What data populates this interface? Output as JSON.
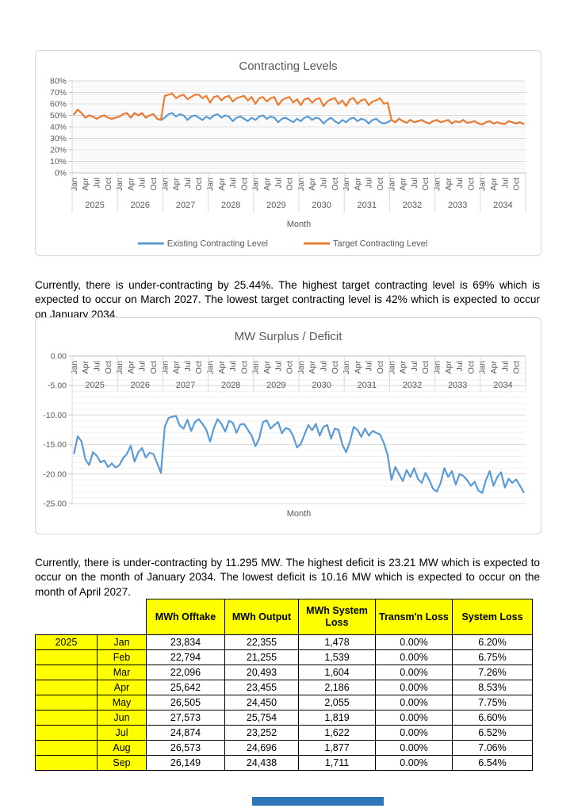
{
  "colors": {
    "series_blue": "#5B9BD5",
    "series_orange": "#ED7D31",
    "axis_text": "#595959",
    "grid_major": "#D9D9D9",
    "grid_minor": "#F0F0F0",
    "axis_line": "#BFBFBF",
    "table_header_bg": "#FFFF00",
    "bottom_bar": "#2E75B6"
  },
  "paragraphs": {
    "p1": "Currently, there is under-contracting by 25.44%. The highest target contracting level is 69% which is expected to occur on March 2027. The lowest target contracting level is 42% which is expected to occur on January 2034.",
    "p2": "Currently, there is under-contracting by 11.295 MW. The highest deficit is 23.21 MW which is expected to occur on the month of January 2034. The lowest deficit is 10.16 MW which is expected to occur on the month of April 2027."
  },
  "chart_data": [
    {
      "type": "line",
      "title": "Contracting Levels",
      "xlabel": "Month",
      "ylabel": "",
      "ylim": [
        0,
        80
      ],
      "grid": "major+minor horizontal",
      "legend_position": "bottom",
      "years": [
        "2025",
        "2026",
        "2027",
        "2028",
        "2029",
        "2030",
        "2031",
        "2032",
        "2033",
        "2034"
      ],
      "month_ticks": [
        "Jan",
        "Apr",
        "Jul",
        "Oct"
      ],
      "y_tick_values": [
        0,
        10,
        20,
        30,
        40,
        50,
        60,
        70,
        80
      ],
      "y_tick_labels": [
        "0%",
        "10%",
        "20%",
        "30%",
        "40%",
        "50%",
        "60%",
        "70%",
        "80%"
      ],
      "series": [
        {
          "name": "Existing Contracting Level",
          "color": "#5B9BD5",
          "values": [
            51,
            55,
            52,
            48,
            50,
            49,
            47,
            49,
            50,
            48,
            47,
            48,
            49,
            51,
            52,
            48,
            52,
            50,
            52,
            48,
            50,
            51,
            47,
            46,
            48,
            51,
            52,
            49,
            51,
            50,
            46,
            49,
            50,
            48,
            46,
            49,
            47,
            50,
            51,
            48,
            50,
            49,
            45,
            48,
            49,
            47,
            45,
            48,
            46,
            49,
            50,
            47,
            49,
            48,
            44,
            47,
            48,
            46,
            44,
            47,
            45,
            48,
            49,
            46,
            48,
            47,
            43,
            46,
            48,
            45,
            43,
            46,
            44,
            47,
            48,
            45,
            47,
            46,
            43,
            46,
            47,
            44,
            43,
            44,
            46,
            44,
            47,
            45,
            43.5,
            46,
            44,
            45,
            46,
            44,
            43,
            45,
            46,
            44,
            45,
            46,
            43,
            45,
            44,
            46,
            43.5,
            44,
            45,
            43,
            42,
            44,
            45,
            43,
            44,
            43,
            42.5,
            45,
            44,
            43,
            44,
            42.5
          ]
        },
        {
          "name": "Target Contracting Level",
          "color": "#ED7D31",
          "values": [
            51,
            55,
            52,
            48,
            50,
            49,
            47,
            49,
            50,
            48,
            47,
            48,
            49,
            51,
            52,
            48,
            52,
            50,
            52,
            48,
            50,
            51,
            47,
            46,
            67,
            68,
            69,
            65,
            67,
            68,
            64,
            66,
            68,
            68,
            65,
            67,
            61,
            66,
            67,
            63,
            66,
            67,
            62,
            65,
            66,
            67,
            63,
            66,
            60,
            65,
            66,
            62,
            65,
            66,
            59,
            63,
            65,
            66,
            61,
            64,
            59,
            64,
            65,
            61,
            64,
            65,
            58,
            62,
            64,
            65,
            60,
            63,
            58,
            64,
            65,
            60,
            63,
            64,
            59,
            62,
            63,
            65,
            60,
            61,
            46,
            44,
            47,
            45,
            43.5,
            46,
            44,
            45,
            46,
            44,
            43,
            45,
            46,
            44,
            45,
            46,
            43,
            45,
            44,
            46,
            43.5,
            44,
            45,
            43,
            42,
            44,
            45,
            43,
            44,
            43,
            42.5,
            45,
            44,
            43,
            44,
            42.5
          ]
        }
      ]
    },
    {
      "type": "line",
      "title": "MW Surplus / Deficit",
      "xlabel": "Month",
      "ylabel": "",
      "ylim": [
        -25,
        0
      ],
      "grid": "major+minor horizontal",
      "legend_position": "none",
      "years": [
        "2025",
        "2026",
        "2027",
        "2028",
        "2029",
        "2030",
        "2031",
        "2032",
        "2033",
        "2034"
      ],
      "month_ticks": [
        "Jan",
        "Apr",
        "Jul",
        "Oct"
      ],
      "y_tick_values": [
        0,
        -5,
        -10,
        -15,
        -20,
        -25
      ],
      "y_tick_labels": [
        "0.00",
        "-5.00",
        "-10.00",
        "-15.00",
        "-20.00",
        "-25.00"
      ],
      "series": [
        {
          "name": "MW Surplus / Deficit",
          "color": "#5B9BD5",
          "values": [
            -16.5,
            -13.6,
            -14.5,
            -17.5,
            -18.5,
            -16.3,
            -16.9,
            -18,
            -17.7,
            -18.8,
            -18.2,
            -18.9,
            -18.5,
            -17.3,
            -16.6,
            -15.2,
            -17.9,
            -16.3,
            -15.6,
            -17.2,
            -16.4,
            -16.6,
            -18.2,
            -19.8,
            -12,
            -10.5,
            -10.3,
            -10.16,
            -11.8,
            -12.3,
            -10.8,
            -12.7,
            -11.2,
            -10.7,
            -11.5,
            -12.5,
            -14.5,
            -12.2,
            -10.7,
            -11.5,
            -12.8,
            -11,
            -11.3,
            -13,
            -11.6,
            -11.5,
            -12.5,
            -13.5,
            -15.3,
            -14,
            -11.2,
            -10.9,
            -12.3,
            -11.7,
            -11.2,
            -13.1,
            -12.2,
            -12.4,
            -13.6,
            -15.5,
            -14.9,
            -13.3,
            -11.7,
            -12.6,
            -11.5,
            -13.5,
            -12,
            -11.7,
            -14,
            -12.3,
            -12.5,
            -15,
            -16.3,
            -14.5,
            -12,
            -12.5,
            -13.7,
            -12.3,
            -13.5,
            -12.7,
            -13,
            -13.3,
            -14.8,
            -16.8,
            -21,
            -18.8,
            -20,
            -21.2,
            -19.3,
            -20.5,
            -19,
            -20.8,
            -21.5,
            -19.8,
            -21,
            -22.5,
            -23,
            -21.5,
            -19,
            -20.5,
            -19.5,
            -21.8,
            -20,
            -20.3,
            -21,
            -22,
            -21.3,
            -22.8,
            -23.21,
            -21,
            -19.5,
            -22,
            -20.5,
            -19.7,
            -22.3,
            -20.8,
            -21.5,
            -20.9,
            -22,
            -23.1
          ]
        }
      ]
    }
  ],
  "table": {
    "headers": [
      "MWh Offtake",
      "MWh Output",
      "MWh System Loss",
      "Transm'n Loss",
      "System Loss"
    ],
    "rows": [
      {
        "year": "2025",
        "month": "Jan",
        "cells": [
          "23,834",
          "22,355",
          "1,478",
          "0.00%",
          "6.20%"
        ]
      },
      {
        "year": "",
        "month": "Feb",
        "cells": [
          "22,794",
          "21,255",
          "1,539",
          "0.00%",
          "6.75%"
        ]
      },
      {
        "year": "",
        "month": "Mar",
        "cells": [
          "22,096",
          "20,493",
          "1,604",
          "0.00%",
          "7.26%"
        ]
      },
      {
        "year": "",
        "month": "Apr",
        "cells": [
          "25,642",
          "23,455",
          "2,186",
          "0.00%",
          "8.53%"
        ]
      },
      {
        "year": "",
        "month": "May",
        "cells": [
          "26,505",
          "24,450",
          "2,055",
          "0.00%",
          "7.75%"
        ]
      },
      {
        "year": "",
        "month": "Jun",
        "cells": [
          "27,573",
          "25,754",
          "1,819",
          "0.00%",
          "6.60%"
        ]
      },
      {
        "year": "",
        "month": "Jul",
        "cells": [
          "24,874",
          "23,252",
          "1,622",
          "0.00%",
          "6.52%"
        ]
      },
      {
        "year": "",
        "month": "Aug",
        "cells": [
          "26,573",
          "24,696",
          "1,877",
          "0.00%",
          "7.06%"
        ]
      },
      {
        "year": "",
        "month": "Sep",
        "cells": [
          "26,149",
          "24,438",
          "1,711",
          "0.00%",
          "6.54%"
        ]
      }
    ]
  }
}
